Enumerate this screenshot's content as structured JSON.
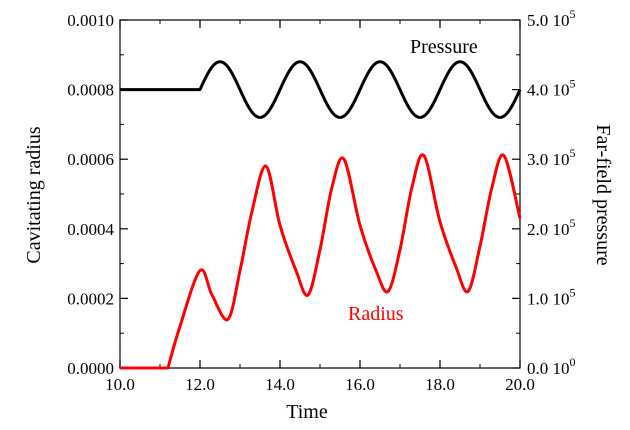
{
  "chart_data": {
    "type": "line",
    "xlabel": "Time",
    "ylabel": "Cavitating radius",
    "y2label": "Far-field pressure",
    "xlim": [
      10.0,
      20.0
    ],
    "ylim": [
      0.0,
      0.001
    ],
    "y2lim": [
      0.0,
      500000
    ],
    "grid": false,
    "x_ticks": [
      "10.0",
      "12.0",
      "14.0",
      "16.0",
      "18.0",
      "20.0"
    ],
    "y_ticks": [
      "0.0000",
      "0.0002",
      "0.0004",
      "0.0006",
      "0.0008",
      "0.0010"
    ],
    "y2_ticks": [
      {
        "mantissa": "0.0 10",
        "exp": "0"
      },
      {
        "mantissa": "1.0 10",
        "exp": "5"
      },
      {
        "mantissa": "2.0 10",
        "exp": "5"
      },
      {
        "mantissa": "3.0 10",
        "exp": "5"
      },
      {
        "mantissa": "4.0 10",
        "exp": "5"
      },
      {
        "mantissa": "5.0 10",
        "exp": "5"
      }
    ],
    "annotations": [
      "Pressure",
      "Radius"
    ],
    "series": [
      {
        "name": "Pressure",
        "axis": "right",
        "color": "#000000",
        "x": [
          10.0,
          12.0,
          12.5,
          13.5,
          14.5,
          15.5,
          16.5,
          17.5,
          18.5,
          19.5,
          20.0
        ],
        "y": [
          400000,
          400000,
          440000,
          360000,
          440000,
          360000,
          440000,
          360000,
          440000,
          360000,
          400000
        ]
      },
      {
        "name": "Radius",
        "axis": "left",
        "color": "#ff0000",
        "x": [
          10.0,
          11.2,
          11.5,
          12.0,
          12.3,
          12.7,
          13.0,
          13.3,
          13.65,
          14.0,
          14.4,
          14.7,
          15.0,
          15.3,
          15.6,
          16.0,
          16.4,
          16.7,
          17.0,
          17.3,
          17.6,
          18.0,
          18.4,
          18.7,
          19.0,
          19.3,
          19.6,
          20.0
        ],
        "y": [
          0.0,
          0.0,
          0.00012,
          0.00028,
          0.00021,
          0.00014,
          0.00028,
          0.00045,
          0.00058,
          0.00041,
          0.00028,
          0.00021,
          0.00034,
          0.00052,
          0.0006,
          0.00041,
          0.00028,
          0.00022,
          0.00034,
          0.00052,
          0.00061,
          0.00042,
          0.00029,
          0.00022,
          0.00035,
          0.00052,
          0.00061,
          0.00043
        ]
      }
    ]
  }
}
